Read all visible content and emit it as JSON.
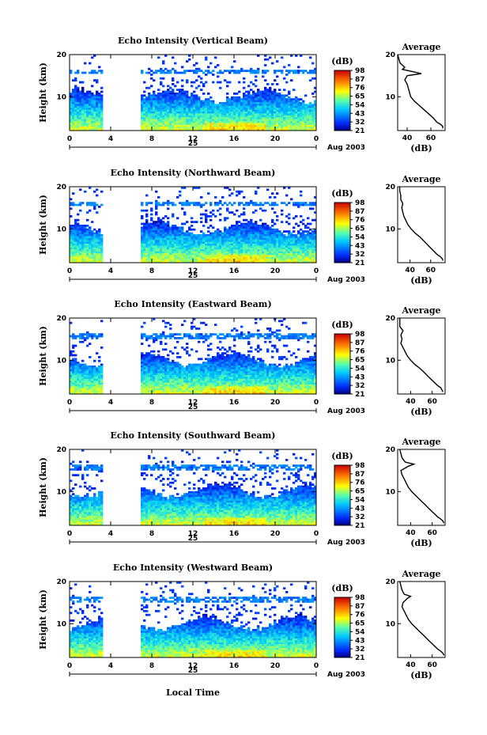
{
  "figure": {
    "date_label": "Aug 2003",
    "day_label": "25",
    "xlabel": "Local Time",
    "colorbar_unit": "(dB)",
    "profile_title": "Average",
    "profile_xlabel": "(dB)"
  },
  "chart_data": [
    {
      "type": "heatmap",
      "title": "Echo Intensity (Vertical Beam)",
      "ylabel": "Height (km)",
      "xlabel": "",
      "x_ticks": [
        "0",
        "4",
        "8",
        "12",
        "16",
        "20",
        "0"
      ],
      "xlim": [
        0,
        24
      ],
      "y_ticks": [
        "10",
        "20"
      ],
      "ylim": [
        2,
        20
      ],
      "data_gap_hours": [
        3.2,
        6.8
      ],
      "colorbar": {
        "unit": "(dB)",
        "ticks": [
          "21",
          "32",
          "43",
          "54",
          "65",
          "76",
          "87",
          "98"
        ],
        "range": [
          21,
          98
        ]
      },
      "profile": {
        "title": "Average",
        "xlabel": "(dB)",
        "xticks": [
          "40",
          "60"
        ],
        "xlim": [
          32,
          72
        ],
        "yticks": [
          "10",
          "20"
        ],
        "ylim": [
          2,
          20
        ],
        "height_km": [
          2.5,
          3,
          3.5,
          4,
          5,
          6,
          7,
          8,
          9,
          10,
          11,
          12,
          13,
          14,
          15,
          15.5,
          16,
          16.5,
          17,
          18,
          19,
          20
        ],
        "value_db": [
          70,
          70,
          68,
          65,
          62,
          58,
          54,
          50,
          46,
          43,
          42,
          41,
          40,
          38,
          40,
          52,
          44,
          36,
          38,
          34,
          33,
          32
        ]
      }
    },
    {
      "type": "heatmap",
      "title": "Echo Intensity (Northward Beam)",
      "ylabel": "Height (km)",
      "xlabel": "",
      "x_ticks": [
        "0",
        "4",
        "8",
        "12",
        "16",
        "20",
        "0"
      ],
      "xlim": [
        0,
        24
      ],
      "y_ticks": [
        "10",
        "20"
      ],
      "ylim": [
        2,
        20
      ],
      "data_gap_hours": [
        3.2,
        6.8
      ],
      "colorbar": {
        "unit": "(dB)",
        "ticks": [
          "21",
          "32",
          "43",
          "54",
          "65",
          "76",
          "87",
          "98"
        ],
        "range": [
          21,
          98
        ]
      },
      "profile": {
        "title": "Average",
        "xlabel": "(dB)",
        "xticks": [
          "40",
          "60"
        ],
        "xlim": [
          28,
          74
        ],
        "yticks": [
          "10",
          "20"
        ],
        "ylim": [
          2,
          20
        ],
        "height_km": [
          2.5,
          3,
          3.5,
          4,
          5,
          6,
          7,
          8,
          9,
          10,
          11,
          12,
          13,
          14,
          15,
          16,
          17,
          18,
          19,
          20
        ],
        "value_db": [
          72,
          71,
          69,
          66,
          62,
          58,
          54,
          50,
          45,
          41,
          38,
          36,
          34,
          33,
          32,
          33,
          31,
          31,
          30,
          30
        ]
      }
    },
    {
      "type": "heatmap",
      "title": "Echo Intensity (Eastward Beam)",
      "ylabel": "Height (km)",
      "xlabel": "",
      "x_ticks": [
        "0",
        "4",
        "8",
        "12",
        "16",
        "20",
        "0"
      ],
      "xlim": [
        0,
        24
      ],
      "y_ticks": [
        "10",
        "20"
      ],
      "ylim": [
        2,
        20
      ],
      "data_gap_hours": [
        3.2,
        6.8
      ],
      "colorbar": {
        "unit": "(dB)",
        "ticks": [
          "21",
          "32",
          "43",
          "54",
          "65",
          "76",
          "87",
          "98"
        ],
        "range": [
          21,
          98
        ]
      },
      "profile": {
        "title": "Average",
        "xlabel": "(dB)",
        "xticks": [
          "40",
          "60"
        ],
        "xlim": [
          28,
          72
        ],
        "yticks": [
          "10",
          "20"
        ],
        "ylim": [
          2,
          20
        ],
        "height_km": [
          2.5,
          3,
          3.5,
          4,
          5,
          6,
          7,
          8,
          9,
          10,
          11,
          12,
          13,
          14,
          15,
          16,
          17,
          18,
          19,
          20
        ],
        "value_db": [
          70,
          69,
          68,
          65,
          61,
          57,
          53,
          49,
          44,
          40,
          37,
          35,
          33,
          31,
          32,
          31,
          33,
          30,
          30,
          30
        ]
      }
    },
    {
      "type": "heatmap",
      "title": "Echo Intensity (Southward Beam)",
      "ylabel": "Height (km)",
      "xlabel": "",
      "x_ticks": [
        "0",
        "4",
        "8",
        "12",
        "16",
        "20",
        "0"
      ],
      "xlim": [
        0,
        24
      ],
      "y_ticks": [
        "10",
        "20"
      ],
      "ylim": [
        2,
        20
      ],
      "data_gap_hours": [
        3.2,
        6.8
      ],
      "colorbar": {
        "unit": "(dB)",
        "ticks": [
          "21",
          "32",
          "43",
          "54",
          "65",
          "76",
          "87",
          "98"
        ],
        "range": [
          21,
          98
        ]
      },
      "profile": {
        "title": "Average",
        "xlabel": "(dB)",
        "xticks": [
          "40",
          "60"
        ],
        "xlim": [
          28,
          72
        ],
        "yticks": [
          "10",
          "20"
        ],
        "ylim": [
          2,
          20
        ],
        "height_km": [
          2.5,
          3,
          3.5,
          4,
          5,
          6,
          7,
          8,
          9,
          10,
          11,
          12,
          13,
          14,
          15,
          16,
          16.5,
          17,
          18,
          19,
          20
        ],
        "value_db": [
          71,
          70,
          68,
          65,
          61,
          57,
          53,
          49,
          45,
          41,
          38,
          36,
          34,
          32,
          31,
          38,
          43,
          35,
          32,
          31,
          30
        ]
      }
    },
    {
      "type": "heatmap",
      "title": "Echo Intensity (Westward Beam)",
      "ylabel": "Height (km)",
      "xlabel": "Local Time",
      "x_ticks": [
        "0",
        "4",
        "8",
        "12",
        "16",
        "20",
        "0"
      ],
      "xlim": [
        0,
        24
      ],
      "y_ticks": [
        "10",
        "20"
      ],
      "ylim": [
        2,
        20
      ],
      "data_gap_hours": [
        3.2,
        6.8
      ],
      "colorbar": {
        "unit": "(dB)",
        "ticks": [
          "21",
          "32",
          "43",
          "54",
          "65",
          "76",
          "87",
          "98"
        ],
        "range": [
          21,
          98
        ]
      },
      "profile": {
        "title": "Average",
        "xlabel": "(dB)",
        "xticks": [
          "40",
          "60"
        ],
        "xlim": [
          28,
          72
        ],
        "yticks": [
          "10",
          "20"
        ],
        "ylim": [
          2,
          20
        ],
        "height_km": [
          2.5,
          3,
          3.5,
          4,
          5,
          6,
          7,
          8,
          9,
          10,
          11,
          12,
          13,
          14,
          15,
          16,
          16.5,
          17,
          18,
          19,
          20
        ],
        "value_db": [
          71,
          70,
          68,
          65,
          61,
          57,
          53,
          49,
          45,
          41,
          38,
          36,
          34,
          32,
          33,
          37,
          40,
          34,
          32,
          31,
          30
        ]
      }
    }
  ]
}
